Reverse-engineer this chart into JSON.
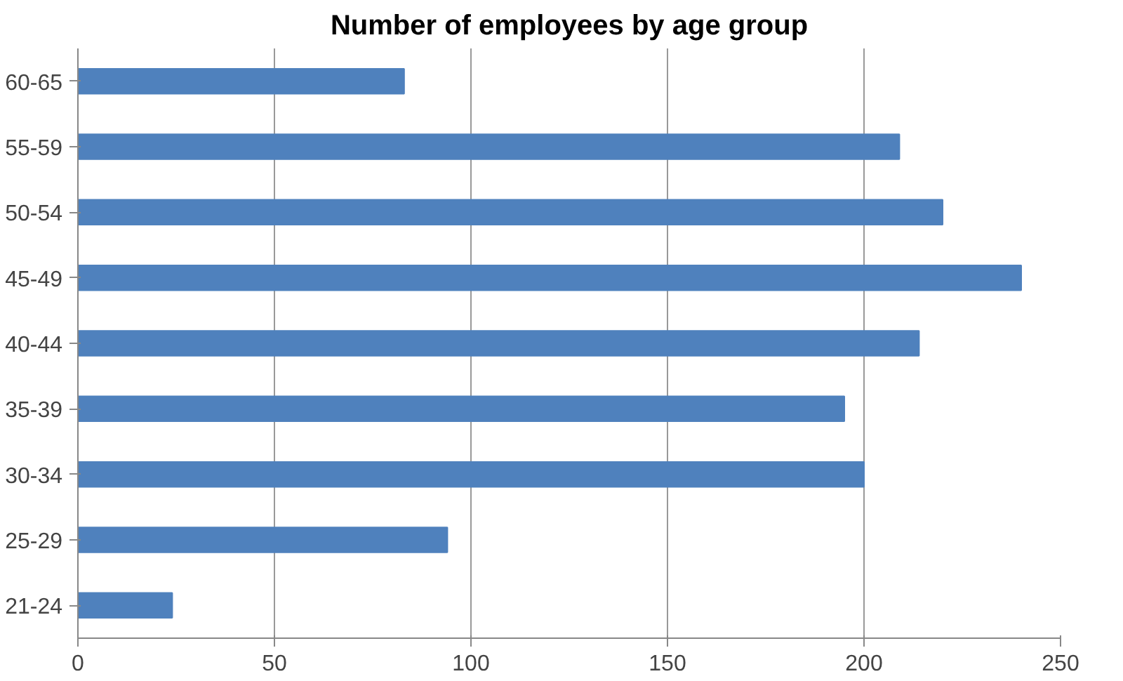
{
  "chart_data": {
    "type": "bar",
    "orientation": "horizontal",
    "title": "Number of employees by age group",
    "categories": [
      "60-65",
      "55-59",
      "50-54",
      "45-49",
      "40-44",
      "35-39",
      "30-34",
      "25-29",
      "21-24"
    ],
    "values": [
      83,
      209,
      220,
      240,
      214,
      195,
      200,
      94,
      24
    ],
    "color": "#4f81bd",
    "xlim": [
      0,
      250
    ],
    "xticks": [
      0,
      50,
      100,
      150,
      200,
      250
    ],
    "grid": "x"
  }
}
